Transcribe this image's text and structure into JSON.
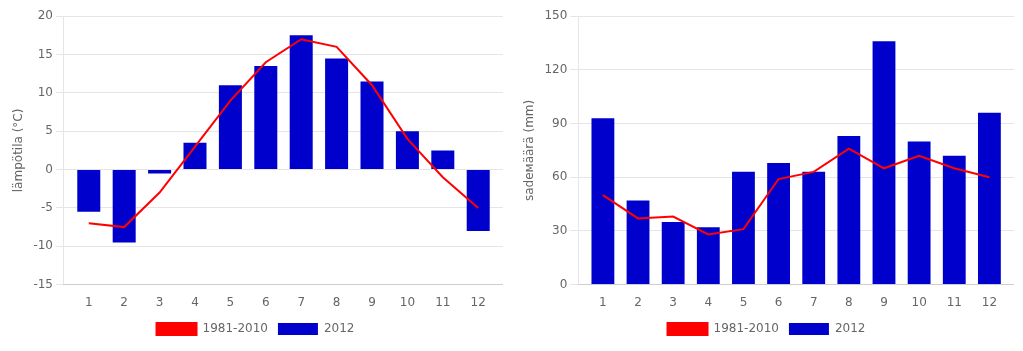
{
  "chart_data": [
    {
      "type": "bar",
      "x": [
        1,
        2,
        3,
        4,
        5,
        6,
        7,
        8,
        9,
        10,
        11,
        12
      ],
      "xlim": [
        0.3,
        12.7
      ],
      "xticks": [
        1,
        2,
        3,
        4,
        5,
        6,
        7,
        8,
        9,
        10,
        11,
        12
      ],
      "y_label": "lämpötila (°C)",
      "ylim": [
        -15,
        20
      ],
      "yticks": [
        -15,
        -10,
        -5,
        0,
        5,
        10,
        15,
        20
      ],
      "grid": true,
      "legend": "bottom",
      "series": [
        {
          "name": "2012",
          "type": "bar",
          "color": "#0000CC",
          "values": [
            -5.5,
            -9.5,
            -0.5,
            3.5,
            11,
            13.5,
            17.5,
            14.5,
            11.5,
            5,
            2.5,
            -8
          ]
        },
        {
          "name": "1981-2010",
          "type": "line",
          "color": "#FF0000",
          "values": [
            -7,
            -7.5,
            -3,
            3,
            9,
            14,
            17,
            16,
            11,
            4,
            -1,
            -5
          ]
        }
      ]
    },
    {
      "type": "bar",
      "x": [
        1,
        2,
        3,
        4,
        5,
        6,
        7,
        8,
        9,
        10,
        11,
        12
      ],
      "xlim": [
        0.3,
        12.7
      ],
      "xticks": [
        1,
        2,
        3,
        4,
        5,
        6,
        7,
        8,
        9,
        10,
        11,
        12
      ],
      "y_label": "sadeмäärä (mm)",
      "ylim": [
        0,
        150
      ],
      "yticks": [
        0,
        30,
        60,
        90,
        120,
        150
      ],
      "grid": true,
      "legend": "bottom",
      "series": [
        {
          "name": "2012",
          "type": "bar",
          "color": "#0000CC",
          "values": [
            93,
            47,
            35,
            32,
            63,
            68,
            63,
            83,
            136,
            80,
            72,
            96
          ]
        },
        {
          "name": "1981-2010",
          "type": "line",
          "color": "#FF0000",
          "values": [
            50,
            37,
            38,
            28,
            31,
            59,
            63,
            76,
            65,
            72,
            65,
            60
          ]
        }
      ]
    }
  ]
}
